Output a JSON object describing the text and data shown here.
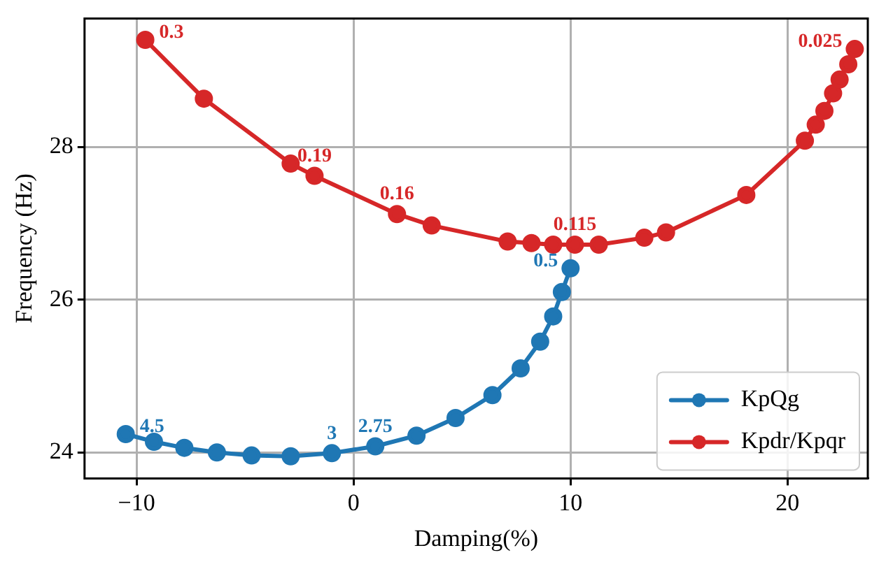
{
  "chart_data": {
    "type": "line",
    "xlabel": "Damping(%)",
    "ylabel": "Frequency (Hz)",
    "xlim": [
      -12.4,
      23.7
    ],
    "xticks": [
      -10,
      0,
      10,
      20
    ],
    "ylim": [
      23.66,
      29.68
    ],
    "yticks": [
      24,
      26,
      28
    ],
    "grid": true,
    "legend": "bottom right",
    "marker": "circle",
    "line_style": "solid",
    "series": [
      {
        "name": "KpQg",
        "color": "#1f77b4",
        "x": [
          -10.5,
          -9.2,
          -7.8,
          -6.3,
          -4.7,
          -2.9,
          -1.0,
          1.0,
          2.9,
          4.7,
          6.4,
          7.7,
          8.6,
          9.2,
          9.6,
          10.0
        ],
        "values": [
          24.24,
          24.14,
          24.06,
          24.0,
          23.96,
          23.95,
          23.99,
          24.08,
          24.22,
          24.45,
          24.75,
          25.1,
          25.45,
          25.78,
          26.1,
          26.41
        ]
      },
      {
        "name": "Kpdr/Kpqr",
        "color": "#d62728",
        "x": [
          -9.6,
          -6.9,
          -2.9,
          -1.8,
          2.0,
          3.6,
          7.1,
          8.2,
          9.2,
          10.2,
          11.3,
          13.4,
          14.4,
          18.1,
          20.8,
          21.3,
          21.7,
          22.1,
          22.4,
          22.8,
          23.1
        ],
        "values": [
          29.4,
          28.63,
          27.78,
          27.62,
          27.12,
          26.97,
          26.76,
          26.74,
          26.72,
          26.72,
          26.72,
          26.81,
          26.88,
          27.37,
          28.08,
          28.29,
          28.47,
          28.7,
          28.88,
          29.08,
          29.28
        ]
      }
    ],
    "annotations": [
      {
        "text": "0.3",
        "x": -9.6,
        "y": 29.4
      },
      {
        "text": "0.19",
        "x": -1.8,
        "y": 27.62
      },
      {
        "text": "0.16",
        "x": 2.0,
        "y": 27.12
      },
      {
        "text": "0.115",
        "x": 10.2,
        "y": 26.72
      },
      {
        "text": "0.025",
        "x": 23.1,
        "y": 29.28
      },
      {
        "text": "4.5",
        "x": -10.5,
        "y": 24.24
      },
      {
        "text": "3",
        "x": -1.0,
        "y": 23.99
      },
      {
        "text": "2.75",
        "x": 1.0,
        "y": 24.08
      },
      {
        "text": "0.5",
        "x": 10.0,
        "y": 26.41
      }
    ]
  }
}
